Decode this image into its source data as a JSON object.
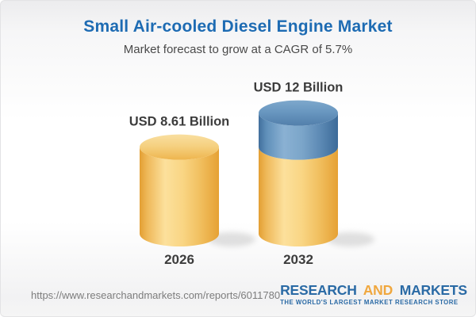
{
  "header": {
    "title": "Small Air-cooled Diesel Engine Market",
    "subtitle": "Market forecast to grow at a CAGR of 5.7%"
  },
  "chart_data": {
    "type": "bar",
    "title": "Small Air-cooled Diesel Engine Market",
    "subtitle": "Market forecast to grow at a CAGR of 5.7%",
    "unit": "USD Billion",
    "cagr_percent_text": "5.7%",
    "categories": [
      "2026",
      "2032"
    ],
    "values": [
      8.61,
      12
    ],
    "value_labels": [
      "USD 8.61 Billion",
      "USD 12 Billion"
    ],
    "ylim": [
      0,
      13
    ],
    "grid": false,
    "legend": false,
    "bars": [
      {
        "category": "2026",
        "label": "USD 8.61 Billion",
        "value": 8.61,
        "segments": [
          {
            "to": 8.61,
            "color": "yellow"
          }
        ]
      },
      {
        "category": "2032",
        "label": "USD 12 Billion",
        "value": 12,
        "segments": [
          {
            "to": 8.61,
            "color": "yellow"
          },
          {
            "to": 12,
            "color": "blue"
          }
        ]
      }
    ],
    "colors": {
      "yellow": "#f5c76e",
      "blue": "#5585b2"
    }
  },
  "footer": {
    "url": "https://www.researchandmarkets.com/reports/6011780",
    "logo": {
      "words": [
        {
          "text": "RESEARCH",
          "color": "#2a6aa5"
        },
        {
          "text": "AND",
          "color": "#f0a73e"
        },
        {
          "text": "MARKETS",
          "color": "#2a6aa5"
        }
      ],
      "tagline": "THE WORLD'S LARGEST MARKET RESEARCH STORE"
    }
  },
  "theme": {
    "title_blue": "#1d6bb3",
    "text_dark": "#3c3c3c",
    "url_gray": "#7d7d7d"
  }
}
